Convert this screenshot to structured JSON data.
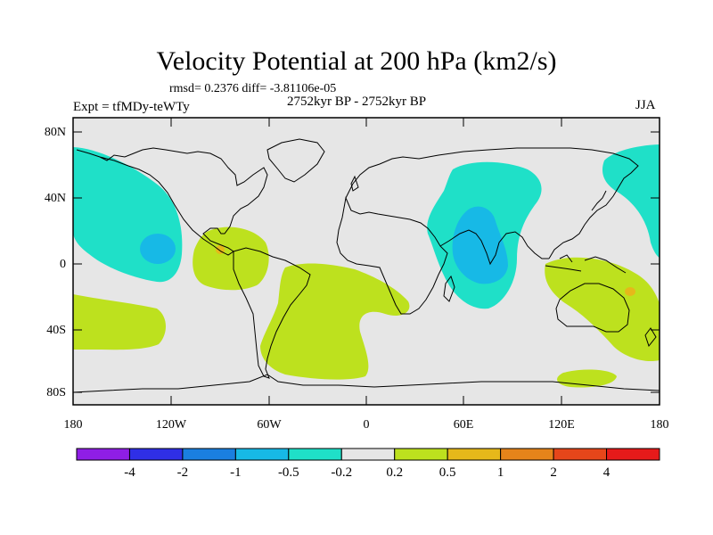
{
  "title": "Velocity Potential at 200 hPa (km2/s)",
  "stats": "rmsd= 0.2376 diff= -3.81106e-05",
  "experiment": "Expt = tfMDy-teWTy",
  "period": "2752kyr BP - 2752kyr BP",
  "season": "JJA",
  "lat_ticks": [
    "80N",
    "40N",
    "0",
    "40S",
    "80S"
  ],
  "lon_ticks": [
    "180",
    "120W",
    "60W",
    "0",
    "60E",
    "120E",
    "180"
  ],
  "colorbar": {
    "labels": [
      "-4",
      "-2",
      "-1",
      "-0.5",
      "-0.2",
      "0.2",
      "0.5",
      "1",
      "2",
      "4"
    ],
    "colors": [
      "#8f1ee6",
      "#2f2fe6",
      "#1a7fe0",
      "#17b9e6",
      "#1fe0c8",
      "#e6e6e6",
      "#bde11e",
      "#e6b81a",
      "#e6841a",
      "#e6461a",
      "#e61a1a"
    ]
  },
  "map_colors": {
    "ocean_background": "#e6e6e6",
    "neg_weak": "#1fe0c8",
    "neg_mid": "#17b9e6",
    "pos_weak": "#bde11e",
    "pos_mid": "#e6b81a"
  }
}
